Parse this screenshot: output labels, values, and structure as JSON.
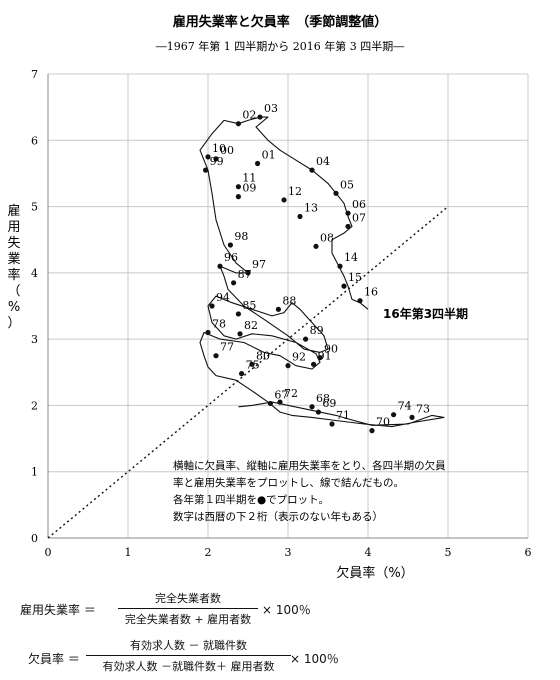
{
  "chart_data": {
    "type": "line",
    "title": "雇用失業率と欠員率　（季節調整値）",
    "subtitle": "―1967 年第 1 四半期から 2016 年第 3 四半期―",
    "xlabel": "欠員率（%）",
    "ylabel": "雇用失業率（%）",
    "xlim": [
      0,
      6
    ],
    "ylim": [
      0,
      7
    ],
    "xticks": [
      "0",
      "1",
      "2",
      "3",
      "4",
      "5",
      "6"
    ],
    "yticks": [
      "0",
      "1",
      "2",
      "3",
      "4",
      "5",
      "6",
      "7"
    ],
    "grid": true,
    "reference_line": {
      "from": [
        0,
        0
      ],
      "to": [
        5,
        5
      ],
      "style": "dotted"
    },
    "annotation": [
      "横軸に欠員率、縦軸に雇用失業率をとり、各四半期の欠員",
      "率と雇用失業率をプロットし、線で結んだもの。",
      "各年第１四半期を●でプロット。",
      "数字は西暦の下２桁（表示のない年もある）"
    ],
    "end_label": "16年第3四半期",
    "series": [
      {
        "points": [
          {
            "x": 2.38,
            "y": 1.98
          },
          {
            "x": 2.55,
            "y": 2.0
          },
          {
            "x": 2.8,
            "y": 2.05
          },
          {
            "x": 3.2,
            "y": 1.95
          },
          {
            "x": 3.4,
            "y": 1.9
          },
          {
            "x": 3.6,
            "y": 1.85
          },
          {
            "x": 3.8,
            "y": 1.78
          },
          {
            "x": 4.05,
            "y": 1.7
          },
          {
            "x": 4.5,
            "y": 1.72
          },
          {
            "x": 4.8,
            "y": 1.85
          },
          {
            "x": 4.95,
            "y": 1.82
          },
          {
            "x": 4.6,
            "y": 1.75
          },
          {
            "x": 4.3,
            "y": 1.68
          },
          {
            "x": 3.95,
            "y": 1.72
          },
          {
            "x": 3.55,
            "y": 1.78
          },
          {
            "x": 3.3,
            "y": 1.82
          },
          {
            "x": 3.05,
            "y": 1.85
          },
          {
            "x": 2.9,
            "y": 1.9
          },
          {
            "x": 2.75,
            "y": 2.05
          },
          {
            "x": 2.55,
            "y": 2.22
          },
          {
            "x": 2.35,
            "y": 2.38
          },
          {
            "x": 2.1,
            "y": 2.45
          },
          {
            "x": 2.0,
            "y": 2.58
          },
          {
            "x": 1.95,
            "y": 2.75
          },
          {
            "x": 1.9,
            "y": 2.95
          },
          {
            "x": 1.95,
            "y": 3.1
          },
          {
            "x": 2.15,
            "y": 3.0
          },
          {
            "x": 2.45,
            "y": 2.95
          },
          {
            "x": 2.7,
            "y": 2.8
          },
          {
            "x": 2.9,
            "y": 2.75
          },
          {
            "x": 3.1,
            "y": 2.6
          },
          {
            "x": 3.3,
            "y": 2.55
          },
          {
            "x": 3.4,
            "y": 2.65
          },
          {
            "x": 3.35,
            "y": 2.78
          },
          {
            "x": 3.1,
            "y": 2.95
          },
          {
            "x": 2.8,
            "y": 3.05
          },
          {
            "x": 2.55,
            "y": 3.08
          },
          {
            "x": 2.35,
            "y": 3.0
          },
          {
            "x": 2.2,
            "y": 3.05
          },
          {
            "x": 2.05,
            "y": 3.25
          },
          {
            "x": 2.0,
            "y": 3.5
          },
          {
            "x": 2.1,
            "y": 3.65
          },
          {
            "x": 2.3,
            "y": 3.55
          },
          {
            "x": 2.55,
            "y": 3.45
          },
          {
            "x": 2.8,
            "y": 3.35
          },
          {
            "x": 2.95,
            "y": 3.4
          },
          {
            "x": 3.05,
            "y": 3.55
          },
          {
            "x": 3.15,
            "y": 3.45
          },
          {
            "x": 3.3,
            "y": 3.25
          },
          {
            "x": 3.45,
            "y": 3.05
          },
          {
            "x": 3.5,
            "y": 2.85
          },
          {
            "x": 3.4,
            "y": 2.8
          },
          {
            "x": 3.2,
            "y": 2.85
          },
          {
            "x": 3.0,
            "y": 3.05
          },
          {
            "x": 2.7,
            "y": 3.3
          },
          {
            "x": 2.45,
            "y": 3.5
          },
          {
            "x": 2.25,
            "y": 3.75
          },
          {
            "x": 2.2,
            "y": 3.95
          },
          {
            "x": 2.15,
            "y": 4.1
          },
          {
            "x": 2.35,
            "y": 4.0
          },
          {
            "x": 2.5,
            "y": 4.0
          },
          {
            "x": 2.35,
            "y": 4.15
          },
          {
            "x": 2.2,
            "y": 4.42
          },
          {
            "x": 2.1,
            "y": 4.8
          },
          {
            "x": 2.05,
            "y": 5.2
          },
          {
            "x": 2.0,
            "y": 5.55
          },
          {
            "x": 1.9,
            "y": 5.85
          },
          {
            "x": 2.05,
            "y": 6.1
          },
          {
            "x": 2.2,
            "y": 6.3
          },
          {
            "x": 2.38,
            "y": 6.25
          },
          {
            "x": 2.5,
            "y": 6.3
          },
          {
            "x": 2.65,
            "y": 6.35
          },
          {
            "x": 2.75,
            "y": 6.35
          },
          {
            "x": 2.6,
            "y": 6.2
          },
          {
            "x": 2.75,
            "y": 6.0
          },
          {
            "x": 2.9,
            "y": 5.85
          },
          {
            "x": 3.1,
            "y": 5.7
          },
          {
            "x": 3.3,
            "y": 5.55
          },
          {
            "x": 3.5,
            "y": 5.35
          },
          {
            "x": 3.6,
            "y": 5.2
          },
          {
            "x": 3.7,
            "y": 5.05
          },
          {
            "x": 3.75,
            "y": 4.85
          },
          {
            "x": 3.8,
            "y": 4.7
          },
          {
            "x": 3.7,
            "y": 4.6
          },
          {
            "x": 3.55,
            "y": 4.5
          },
          {
            "x": 3.55,
            "y": 4.3
          },
          {
            "x": 3.7,
            "y": 3.95
          },
          {
            "x": 3.75,
            "y": 3.8
          },
          {
            "x": 3.8,
            "y": 3.6
          },
          {
            "x": 3.9,
            "y": 3.55
          },
          {
            "x": 4.0,
            "y": 3.45
          }
        ]
      }
    ],
    "markers": [
      {
        "label": "02",
        "x": 2.38,
        "y": 6.25
      },
      {
        "label": "03",
        "x": 2.65,
        "y": 6.35
      },
      {
        "label": "01",
        "x": 2.62,
        "y": 5.65
      },
      {
        "label": "04",
        "x": 3.3,
        "y": 5.55
      },
      {
        "label": "00",
        "x": 2.1,
        "y": 5.72
      },
      {
        "label": "10",
        "x": 2.0,
        "y": 5.75
      },
      {
        "label": "99",
        "x": 1.97,
        "y": 5.55
      },
      {
        "label": "05",
        "x": 3.6,
        "y": 5.2
      },
      {
        "label": "11",
        "x": 2.38,
        "y": 5.3
      },
      {
        "label": "12",
        "x": 2.95,
        "y": 5.1
      },
      {
        "label": "09",
        "x": 2.38,
        "y": 5.15
      },
      {
        "label": "06",
        "x": 3.75,
        "y": 4.9
      },
      {
        "label": "13",
        "x": 3.15,
        "y": 4.85
      },
      {
        "label": "07",
        "x": 3.75,
        "y": 4.7
      },
      {
        "label": "98",
        "x": 2.28,
        "y": 4.42
      },
      {
        "label": "08",
        "x": 3.35,
        "y": 4.4
      },
      {
        "label": "96",
        "x": 2.15,
        "y": 4.1
      },
      {
        "label": "14",
        "x": 3.65,
        "y": 4.1
      },
      {
        "label": "97",
        "x": 2.5,
        "y": 4.0
      },
      {
        "label": "87",
        "x": 2.32,
        "y": 3.85
      },
      {
        "label": "15",
        "x": 3.7,
        "y": 3.8
      },
      {
        "label": "94",
        "x": 2.05,
        "y": 3.5
      },
      {
        "label": "88",
        "x": 2.88,
        "y": 3.45
      },
      {
        "label": "16",
        "x": 3.9,
        "y": 3.58
      },
      {
        "label": "85",
        "x": 2.38,
        "y": 3.38
      },
      {
        "label": "82",
        "x": 2.4,
        "y": 3.08
      },
      {
        "label": "89",
        "x": 3.22,
        "y": 3.0
      },
      {
        "label": "78",
        "x": 2.0,
        "y": 3.1
      },
      {
        "label": "90",
        "x": 3.4,
        "y": 2.72
      },
      {
        "label": "77",
        "x": 2.1,
        "y": 2.75
      },
      {
        "label": "80",
        "x": 2.55,
        "y": 2.62
      },
      {
        "label": "92",
        "x": 3.0,
        "y": 2.6
      },
      {
        "label": "91",
        "x": 3.32,
        "y": 2.62
      },
      {
        "label": "75",
        "x": 2.42,
        "y": 2.48
      },
      {
        "label": "72",
        "x": 2.9,
        "y": 2.05
      },
      {
        "label": "68",
        "x": 3.3,
        "y": 1.98
      },
      {
        "label": "67",
        "x": 2.78,
        "y": 2.03
      },
      {
        "label": "73",
        "x": 4.55,
        "y": 1.82
      },
      {
        "label": "69",
        "x": 3.38,
        "y": 1.9
      },
      {
        "label": "74",
        "x": 4.32,
        "y": 1.86
      },
      {
        "label": "71",
        "x": 3.55,
        "y": 1.72
      },
      {
        "label": "70",
        "x": 4.05,
        "y": 1.62
      }
    ]
  },
  "formulas": {
    "f1": {
      "label": "雇用失業率 ＝",
      "numerator": "完全失業者数",
      "denominator": "完全失業者数 + 雇用者数",
      "times": "× 100％"
    },
    "f2": {
      "label": "欠員率 ＝",
      "numerator": "有効求人数 － 就職件数",
      "denominator": "有効求人数 －就職件数＋ 雇用者数",
      "times": "× 100％"
    }
  }
}
